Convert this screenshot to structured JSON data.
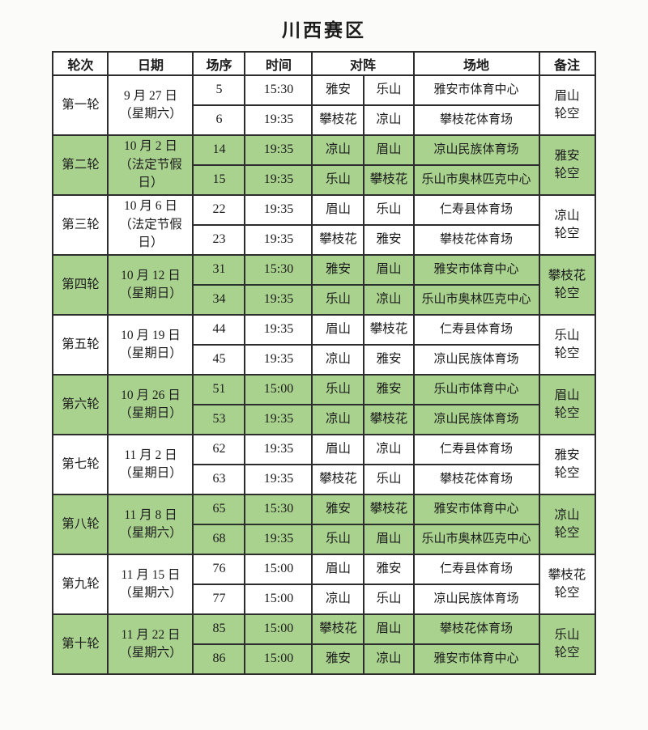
{
  "title": "川西赛区",
  "table": {
    "headers": [
      "轮次",
      "日期",
      "场序",
      "时间",
      "对阵",
      "场地",
      "备注"
    ],
    "bye_suffix": "轮空",
    "colors": {
      "row_green": "#a9d28e",
      "row_white": "#ffffff",
      "border": "#2d2d2d",
      "text": "#1c1c1c"
    },
    "rounds": [
      {
        "round": "第一轮",
        "date_lines": [
          "9 月 27 日",
          "（星期六）"
        ],
        "bye": "眉山",
        "shaded": false,
        "matches": [
          {
            "no": "5",
            "time": "15:30",
            "home": "雅安",
            "away": "乐山",
            "venue": "雅安市体育中心"
          },
          {
            "no": "6",
            "time": "19:35",
            "home": "攀枝花",
            "away": "凉山",
            "venue": "攀枝花体育场"
          }
        ]
      },
      {
        "round": "第二轮",
        "date_lines": [
          "10 月 2 日",
          "（法定节假日）"
        ],
        "bye": "雅安",
        "shaded": true,
        "matches": [
          {
            "no": "14",
            "time": "19:35",
            "home": "凉山",
            "away": "眉山",
            "venue": "凉山民族体育场"
          },
          {
            "no": "15",
            "time": "19:35",
            "home": "乐山",
            "away": "攀枝花",
            "venue": "乐山市奥林匹克中心"
          }
        ]
      },
      {
        "round": "第三轮",
        "date_lines": [
          "10 月 6 日",
          "（法定节假日）"
        ],
        "bye": "凉山",
        "shaded": false,
        "matches": [
          {
            "no": "22",
            "time": "19:35",
            "home": "眉山",
            "away": "乐山",
            "venue": "仁寿县体育场"
          },
          {
            "no": "23",
            "time": "19:35",
            "home": "攀枝花",
            "away": "雅安",
            "venue": "攀枝花体育场"
          }
        ]
      },
      {
        "round": "第四轮",
        "date_lines": [
          "10 月 12 日",
          "（星期日）"
        ],
        "bye": "攀枝花",
        "shaded": true,
        "matches": [
          {
            "no": "31",
            "time": "15:30",
            "home": "雅安",
            "away": "眉山",
            "venue": "雅安市体育中心"
          },
          {
            "no": "34",
            "time": "19:35",
            "home": "乐山",
            "away": "凉山",
            "venue": "乐山市奥林匹克中心"
          }
        ]
      },
      {
        "round": "第五轮",
        "date_lines": [
          "10 月 19 日",
          "（星期日）"
        ],
        "bye": "乐山",
        "shaded": false,
        "matches": [
          {
            "no": "44",
            "time": "19:35",
            "home": "眉山",
            "away": "攀枝花",
            "venue": "仁寿县体育场"
          },
          {
            "no": "45",
            "time": "19:35",
            "home": "凉山",
            "away": "雅安",
            "venue": "凉山民族体育场"
          }
        ]
      },
      {
        "round": "第六轮",
        "date_lines": [
          "10 月 26 日",
          "（星期日）"
        ],
        "bye": "眉山",
        "shaded": true,
        "matches": [
          {
            "no": "51",
            "time": "15:00",
            "home": "乐山",
            "away": "雅安",
            "venue": "乐山市体育中心"
          },
          {
            "no": "53",
            "time": "19:35",
            "home": "凉山",
            "away": "攀枝花",
            "venue": "凉山民族体育场"
          }
        ]
      },
      {
        "round": "第七轮",
        "date_lines": [
          "11 月 2 日",
          "（星期日）"
        ],
        "bye": "雅安",
        "shaded": false,
        "matches": [
          {
            "no": "62",
            "time": "19:35",
            "home": "眉山",
            "away": "凉山",
            "venue": "仁寿县体育场"
          },
          {
            "no": "63",
            "time": "19:35",
            "home": "攀枝花",
            "away": "乐山",
            "venue": "攀枝花体育场"
          }
        ]
      },
      {
        "round": "第八轮",
        "date_lines": [
          "11 月 8 日",
          "（星期六）"
        ],
        "bye": "凉山",
        "shaded": true,
        "matches": [
          {
            "no": "65",
            "time": "15:30",
            "home": "雅安",
            "away": "攀枝花",
            "venue": "雅安市体育中心"
          },
          {
            "no": "68",
            "time": "19:35",
            "home": "乐山",
            "away": "眉山",
            "venue": "乐山市奥林匹克中心"
          }
        ]
      },
      {
        "round": "第九轮",
        "date_lines": [
          "11 月 15 日",
          "（星期六）"
        ],
        "bye": "攀枝花",
        "shaded": false,
        "matches": [
          {
            "no": "76",
            "time": "15:00",
            "home": "眉山",
            "away": "雅安",
            "venue": "仁寿县体育场"
          },
          {
            "no": "77",
            "time": "15:00",
            "home": "凉山",
            "away": "乐山",
            "venue": "凉山民族体育场"
          }
        ]
      },
      {
        "round": "第十轮",
        "date_lines": [
          "11 月 22 日",
          "（星期六）"
        ],
        "bye": "乐山",
        "shaded": true,
        "matches": [
          {
            "no": "85",
            "time": "15:00",
            "home": "攀枝花",
            "away": "眉山",
            "venue": "攀枝花体育场"
          },
          {
            "no": "86",
            "time": "15:00",
            "home": "雅安",
            "away": "凉山",
            "venue": "雅安市体育中心"
          }
        ]
      }
    ]
  }
}
